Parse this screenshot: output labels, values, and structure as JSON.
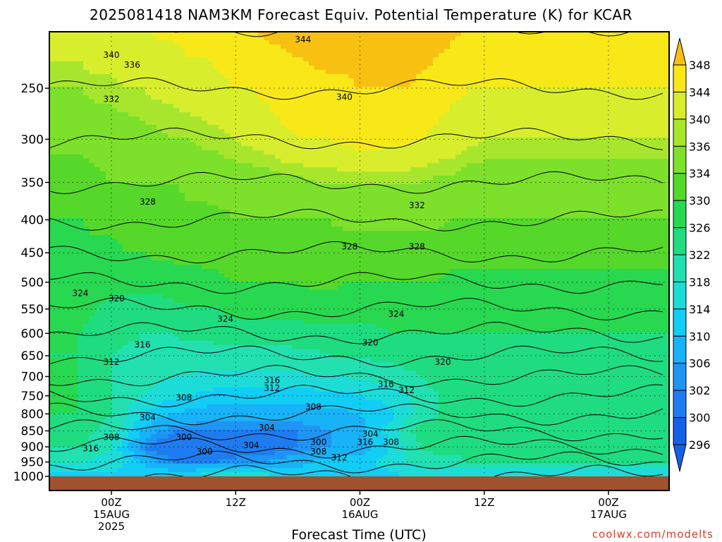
{
  "title": "2025081418 NAM3KM Forecast Equiv. Potential Temperature (K) for KCAR",
  "credit": "coolwx.com/modelts",
  "chart_data": {
    "type": "heatmap",
    "title": "2025081418 NAM3KM Forecast Equiv. Potential Temperature (K) for KCAR",
    "xlabel": "Forecast Time (UTC)",
    "ylabel": "",
    "y_scale": "log",
    "y_reversed": true,
    "ylim": [
      1000,
      200
    ],
    "yticks": [
      250,
      300,
      350,
      400,
      450,
      500,
      550,
      600,
      650,
      700,
      750,
      800,
      850,
      900,
      950,
      1000
    ],
    "x_time_range": [
      "2025-08-14 18Z",
      "2025-08-17 06Z"
    ],
    "xticks": [
      {
        "line1": "00Z",
        "line2": "15AUG",
        "line3": "2025",
        "time": "2025-08-15 00Z"
      },
      {
        "line1": "12Z",
        "line2": "",
        "line3": "",
        "time": "2025-08-15 12Z"
      },
      {
        "line1": "00Z",
        "line2": "16AUG",
        "line3": "",
        "time": "2025-08-16 00Z"
      },
      {
        "line1": "12Z",
        "line2": "",
        "line3": "",
        "time": "2025-08-16 12Z"
      },
      {
        "line1": "00Z",
        "line2": "17AUG",
        "line3": "",
        "time": "2025-08-17 00Z"
      }
    ],
    "grid": true,
    "colorbar": {
      "levels": [
        296,
        300,
        302,
        306,
        310,
        314,
        318,
        322,
        326,
        330,
        334,
        336,
        340,
        344,
        348
      ],
      "colors": [
        "#1560e8",
        "#1e7cf0",
        "#1e95f5",
        "#18b2f8",
        "#12cdf5",
        "#1cdcd8",
        "#22e0b0",
        "#1fdc80",
        "#28d850",
        "#55d82a",
        "#7de02a",
        "#a8e62e",
        "#d8ee2c",
        "#f8e818",
        "#f8c010"
      ]
    },
    "levels": [
      {
        "p": 1000,
        "v": [
          309,
          309,
          309,
          309,
          310,
          310,
          310,
          310,
          312,
          314,
          316,
          314,
          312,
          310,
          309,
          309,
          309,
          308,
          308,
          309,
          309,
          310,
          310,
          309,
          309,
          309,
          309
        ]
      },
      {
        "p": 950,
        "v": [
          314,
          313,
          312,
          310,
          306,
          302,
          300,
          300,
          300,
          300,
          301,
          302,
          302,
          303,
          304,
          306,
          307,
          308,
          308,
          310,
          312,
          314,
          316,
          316,
          316,
          318,
          318
        ]
      },
      {
        "p": 900,
        "v": [
          318,
          316,
          314,
          306,
          300,
          298,
          298,
          298,
          298,
          298,
          298,
          298,
          298,
          299,
          300,
          301,
          302,
          303,
          304,
          306,
          310,
          314,
          318,
          320,
          320,
          320,
          320
        ]
      },
      {
        "p": 850,
        "v": [
          320,
          318,
          316,
          312,
          306,
          302,
          300,
          300,
          300,
          300,
          300,
          300,
          300,
          300,
          300,
          301,
          302,
          303,
          305,
          308,
          312,
          318,
          320,
          320,
          320,
          320,
          320
        ]
      },
      {
        "p": 800,
        "v": [
          322,
          320,
          318,
          314,
          310,
          308,
          306,
          305,
          304,
          304,
          304,
          304,
          304,
          304,
          304,
          304,
          305,
          305,
          306,
          307,
          309,
          312,
          316,
          318,
          318,
          318,
          318
        ]
      },
      {
        "p": 750,
        "v": [
          322,
          320,
          318,
          316,
          314,
          312,
          311,
          310,
          309,
          308,
          308,
          308,
          308,
          308,
          308,
          308,
          309,
          309,
          310,
          311,
          312,
          314,
          316,
          318,
          318,
          318,
          318
        ]
      },
      {
        "p": 700,
        "v": [
          322,
          320,
          318,
          316,
          316,
          315,
          314,
          314,
          313,
          313,
          313,
          313,
          313,
          313,
          313,
          314,
          314,
          314,
          315,
          315,
          316,
          317,
          318,
          320,
          320,
          320,
          320
        ]
      },
      {
        "p": 650,
        "v": [
          322,
          320,
          318,
          317,
          317,
          317,
          317,
          316,
          316,
          316,
          316,
          316,
          316,
          316,
          317,
          317,
          318,
          318,
          318,
          319,
          319,
          320,
          320,
          320,
          320,
          320,
          320
        ]
      },
      {
        "p": 600,
        "v": [
          322,
          321,
          320,
          319,
          318,
          318,
          318,
          319,
          319,
          320,
          320,
          320,
          320,
          320,
          320,
          321,
          321,
          321,
          321,
          321,
          322,
          322,
          322,
          322,
          322,
          322,
          322
        ]
      },
      {
        "p": 550,
        "v": [
          323,
          322,
          321,
          321,
          321,
          321,
          321,
          322,
          322,
          322,
          323,
          324,
          324,
          324,
          324,
          324,
          324,
          324,
          324,
          324,
          324,
          324,
          324,
          324,
          324,
          324,
          324
        ]
      },
      {
        "p": 500,
        "v": [
          324,
          324,
          323,
          323,
          323,
          323,
          324,
          324,
          324,
          325,
          326,
          326,
          326,
          326,
          326,
          327,
          327,
          326,
          326,
          326,
          326,
          326,
          326,
          326,
          325,
          325,
          325
        ]
      },
      {
        "p": 450,
        "v": [
          325,
          325,
          325,
          326,
          326,
          327,
          327,
          327,
          328,
          328,
          328,
          328,
          328,
          328,
          328,
          328,
          328,
          328,
          328,
          328,
          328,
          328,
          328,
          328,
          327,
          327,
          327
        ]
      },
      {
        "p": 400,
        "v": [
          326,
          327,
          327,
          328,
          328,
          328,
          328,
          329,
          329,
          329,
          330,
          330,
          330,
          330,
          330,
          330,
          330,
          331,
          331,
          331,
          331,
          331,
          331,
          331,
          330,
          330,
          330
        ]
      },
      {
        "p": 350,
        "v": [
          328,
          329,
          330,
          330,
          330,
          330,
          330,
          331,
          331,
          332,
          332,
          332,
          332,
          333,
          333,
          334,
          334,
          334,
          334,
          334,
          334,
          334,
          334,
          333,
          333,
          332,
          332
        ]
      },
      {
        "p": 300,
        "v": [
          331,
          332,
          332,
          332,
          333,
          333,
          334,
          334,
          335,
          335,
          336,
          337,
          338,
          339,
          340,
          340,
          340,
          341,
          342,
          342,
          341,
          341,
          340,
          339,
          338,
          337,
          336
        ]
      },
      {
        "p": 250,
        "v": [
          334,
          335,
          335,
          336,
          336,
          337,
          337,
          338,
          338,
          339,
          340,
          340,
          341,
          342,
          342,
          343,
          343,
          343,
          344,
          344,
          344,
          344,
          343,
          342,
          341,
          340,
          340
        ]
      },
      {
        "p": 200,
        "v": [
          339,
          340,
          340,
          340,
          340,
          341,
          341,
          342,
          342,
          343,
          344,
          344,
          345,
          345,
          346,
          346,
          347,
          347,
          348,
          348,
          348,
          348,
          347,
          346,
          345,
          344,
          343
        ]
      }
    ],
    "contour_labels": [
      {
        "text": "344",
        "time_h": 37,
        "p": 210
      },
      {
        "text": "340",
        "time_h": 0,
        "p": 222
      },
      {
        "text": "336",
        "time_h": 4,
        "p": 230
      },
      {
        "text": "340",
        "time_h": 45,
        "p": 258
      },
      {
        "text": "332",
        "time_h": 0,
        "p": 260
      },
      {
        "text": "328",
        "time_h": 7,
        "p": 375
      },
      {
        "text": "332",
        "time_h": 59,
        "p": 380
      },
      {
        "text": "328",
        "time_h": 46,
        "p": 440
      },
      {
        "text": "328",
        "time_h": 59,
        "p": 440
      },
      {
        "text": "324",
        "time_h": -6,
        "p": 520
      },
      {
        "text": "320",
        "time_h": 1,
        "p": 530
      },
      {
        "text": "324",
        "time_h": 22,
        "p": 570
      },
      {
        "text": "324",
        "time_h": 55,
        "p": 560
      },
      {
        "text": "316",
        "time_h": 6,
        "p": 625
      },
      {
        "text": "320",
        "time_h": 50,
        "p": 620
      },
      {
        "text": "312",
        "time_h": 0,
        "p": 665
      },
      {
        "text": "320",
        "time_h": 64,
        "p": 665
      },
      {
        "text": "316",
        "time_h": 31,
        "p": 710
      },
      {
        "text": "312",
        "time_h": 31,
        "p": 730
      },
      {
        "text": "316",
        "time_h": 53,
        "p": 720
      },
      {
        "text": "312",
        "time_h": 57,
        "p": 735
      },
      {
        "text": "308",
        "time_h": 14,
        "p": 755
      },
      {
        "text": "308",
        "time_h": 39,
        "p": 780
      },
      {
        "text": "304",
        "time_h": 7,
        "p": 810
      },
      {
        "text": "304",
        "time_h": 30,
        "p": 840
      },
      {
        "text": "304",
        "time_h": 50,
        "p": 860
      },
      {
        "text": "308",
        "time_h": 0,
        "p": 870
      },
      {
        "text": "300",
        "time_h": 14,
        "p": 870
      },
      {
        "text": "300",
        "time_h": 40,
        "p": 885
      },
      {
        "text": "316",
        "time_h": 49,
        "p": 885
      },
      {
        "text": "308",
        "time_h": 54,
        "p": 885
      },
      {
        "text": "304",
        "time_h": 27,
        "p": 895
      },
      {
        "text": "316",
        "time_h": -4,
        "p": 905
      },
      {
        "text": "308",
        "time_h": 40,
        "p": 915
      },
      {
        "text": "300",
        "time_h": 18,
        "p": 915
      },
      {
        "text": "312",
        "time_h": 44,
        "p": 935
      }
    ]
  }
}
